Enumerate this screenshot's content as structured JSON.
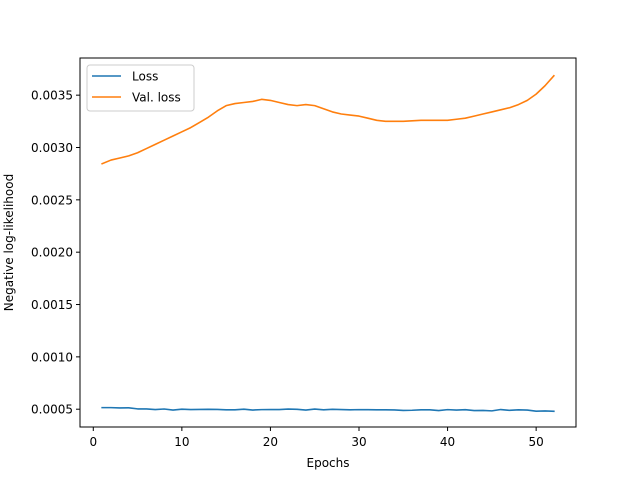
{
  "chart_data": {
    "type": "line",
    "title": "",
    "xlabel": "Epochs",
    "ylabel": "Negative log-likelihood",
    "xlim": [
      -1.5,
      54.5
    ],
    "ylim": [
      0.00033,
      0.003855
    ],
    "xticks": [
      0,
      10,
      20,
      30,
      40,
      50
    ],
    "xtick_labels": [
      "0",
      "10",
      "20",
      "30",
      "40",
      "50"
    ],
    "yticks": [
      0.0005,
      0.001,
      0.0015,
      0.002,
      0.0025,
      0.003,
      0.0035
    ],
    "ytick_labels": [
      "0.0005",
      "0.0010",
      "0.0015",
      "0.0020",
      "0.0025",
      "0.0030",
      "0.0035"
    ],
    "grid": false,
    "legend_position": "upper-left",
    "x": [
      1,
      2,
      3,
      4,
      5,
      6,
      7,
      8,
      9,
      10,
      11,
      12,
      13,
      14,
      15,
      16,
      17,
      18,
      19,
      20,
      21,
      22,
      23,
      24,
      25,
      26,
      27,
      28,
      29,
      30,
      31,
      32,
      33,
      34,
      35,
      36,
      37,
      38,
      39,
      40,
      41,
      42,
      43,
      44,
      45,
      46,
      47,
      48,
      49,
      50,
      51,
      52
    ],
    "series": [
      {
        "name": "Loss",
        "color": "#1f77b4",
        "values": [
          0.000515,
          0.000515,
          0.000512,
          0.000513,
          0.000503,
          0.000503,
          0.000497,
          0.000502,
          0.000492,
          0.0005,
          0.000497,
          0.000498,
          0.000499,
          0.000498,
          0.000494,
          0.000494,
          0.0005,
          0.000492,
          0.000496,
          0.000497,
          0.000497,
          0.000501,
          0.000499,
          0.000492,
          0.000501,
          0.000494,
          0.000499,
          0.000497,
          0.000494,
          0.000496,
          0.000495,
          0.000494,
          0.000494,
          0.000493,
          0.000488,
          0.00049,
          0.000494,
          0.000494,
          0.000487,
          0.000496,
          0.000492,
          0.000495,
          0.000487,
          0.000488,
          0.000484,
          0.000497,
          0.000489,
          0.000494,
          0.000492,
          0.000481,
          0.000483,
          0.00048
        ]
      },
      {
        "name": "Val. loss",
        "color": "#ff7f0e",
        "values": [
          0.002845,
          0.00288,
          0.0029,
          0.00292,
          0.00295,
          0.00299,
          0.00303,
          0.00307,
          0.00311,
          0.00315,
          0.00319,
          0.00324,
          0.00329,
          0.00335,
          0.0034,
          0.00342,
          0.00343,
          0.00344,
          0.00346,
          0.00345,
          0.00343,
          0.00341,
          0.0034,
          0.00341,
          0.0034,
          0.00337,
          0.00334,
          0.00332,
          0.00331,
          0.0033,
          0.00328,
          0.00326,
          0.00325,
          0.00325,
          0.00325,
          0.003255,
          0.00326,
          0.00326,
          0.00326,
          0.00326,
          0.00327,
          0.00328,
          0.0033,
          0.00332,
          0.00334,
          0.00336,
          0.00338,
          0.00341,
          0.00345,
          0.00351,
          0.00359,
          0.003685
        ]
      }
    ]
  }
}
